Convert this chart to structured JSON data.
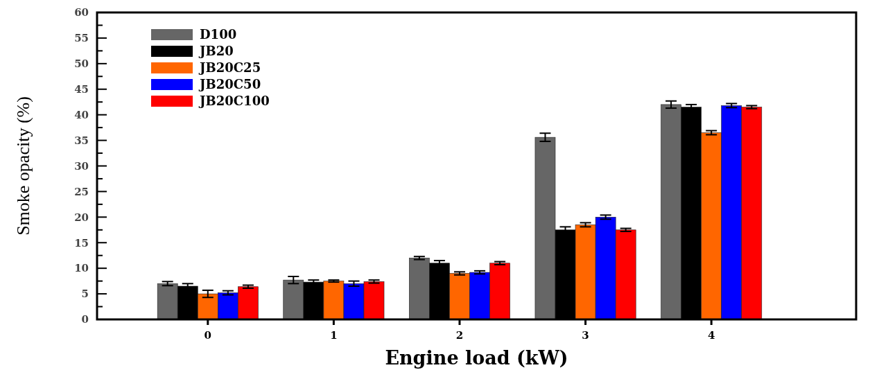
{
  "chart_data": {
    "type": "bar",
    "xlabel": "Engine load (kW)",
    "ylabel": "Smoke opacity (%)",
    "x": [
      0,
      1,
      2,
      3,
      4
    ],
    "xlim": [
      -0.88,
      5.15
    ],
    "xticks": [
      0,
      1,
      2,
      3,
      4
    ],
    "ylim": [
      0,
      60
    ],
    "yticks": [
      0,
      {
        "value": 2.5,
        "label": null
      },
      5,
      {
        "value": 7.5,
        "label": null
      },
      10,
      {
        "value": 12.5,
        "label": null
      },
      15,
      {
        "value": 17.5,
        "label": null
      },
      20,
      {
        "value": 22.5,
        "label": null
      },
      25,
      {
        "value": 27.5,
        "label": null
      },
      30,
      {
        "value": 32.5,
        "label": null
      },
      35,
      {
        "value": 37.5,
        "label": null
      },
      40,
      {
        "value": 42.5,
        "label": null
      },
      45,
      {
        "value": 47.5,
        "label": null
      },
      50,
      {
        "value": 52.5,
        "label": null
      },
      55,
      {
        "value": 57.5,
        "label": null
      },
      60
    ],
    "legend": "top left",
    "series": [
      {
        "name": "D100",
        "color": "#666666",
        "values": [
          7.0,
          7.7,
          12.0,
          35.6,
          42.0
        ],
        "errors": [
          0.4,
          0.7,
          0.3,
          0.8,
          0.7
        ]
      },
      {
        "name": "JB20",
        "color": "#000000",
        "values": [
          6.5,
          7.3,
          11.0,
          17.5,
          41.5
        ],
        "errors": [
          0.5,
          0.4,
          0.5,
          0.6,
          0.5
        ]
      },
      {
        "name": "JB20C25",
        "color": "#ff6600",
        "values": [
          5.0,
          7.5,
          9.0,
          18.5,
          36.5
        ],
        "errors": [
          0.7,
          0.2,
          0.3,
          0.4,
          0.4
        ]
      },
      {
        "name": "JB20C50",
        "color": "#0000ff",
        "values": [
          5.2,
          7.0,
          9.2,
          20.0,
          41.8
        ],
        "errors": [
          0.4,
          0.5,
          0.3,
          0.4,
          0.4
        ]
      },
      {
        "name": "JB20C100",
        "color": "#ff0000",
        "values": [
          6.4,
          7.4,
          11.0,
          17.5,
          41.5
        ],
        "errors": [
          0.3,
          0.3,
          0.3,
          0.3,
          0.3
        ]
      }
    ]
  }
}
